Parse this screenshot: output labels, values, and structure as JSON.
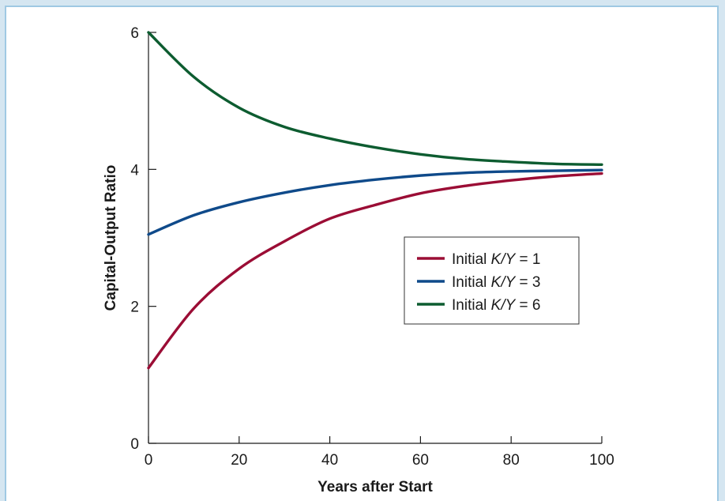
{
  "chart_data": {
    "type": "line",
    "title": "",
    "xlabel": "Years after Start",
    "ylabel": "Capital-Output Ratio",
    "xlim": [
      0,
      100
    ],
    "ylim": [
      0,
      6
    ],
    "x_ticks": [
      0,
      20,
      40,
      60,
      80,
      100
    ],
    "y_ticks": [
      0,
      2,
      4,
      6
    ],
    "grid": false,
    "legend_position": "center-right",
    "series": [
      {
        "name_prefix": "Initial ",
        "name_var": "K/Y",
        "name_suffix": " = 1",
        "color": "#9b0d35",
        "x": [
          0,
          10,
          20,
          30,
          40,
          50,
          60,
          70,
          80,
          90,
          100
        ],
        "y": [
          1.1,
          1.97,
          2.55,
          2.95,
          3.28,
          3.48,
          3.65,
          3.76,
          3.84,
          3.9,
          3.94
        ]
      },
      {
        "name_prefix": "Initial ",
        "name_var": "K/Y",
        "name_suffix": " = 3",
        "color": "#0f4a8a",
        "x": [
          0,
          10,
          20,
          30,
          40,
          50,
          60,
          70,
          80,
          90,
          100
        ],
        "y": [
          3.05,
          3.33,
          3.52,
          3.66,
          3.77,
          3.85,
          3.91,
          3.95,
          3.97,
          3.98,
          3.99
        ]
      },
      {
        "name_prefix": "Initial ",
        "name_var": "K/Y",
        "name_suffix": " = 6",
        "color": "#0d5c30",
        "x": [
          0,
          10,
          20,
          30,
          40,
          50,
          60,
          70,
          80,
          90,
          100
        ],
        "y": [
          6.0,
          5.35,
          4.9,
          4.62,
          4.45,
          4.32,
          4.22,
          4.15,
          4.11,
          4.08,
          4.07
        ]
      }
    ]
  }
}
